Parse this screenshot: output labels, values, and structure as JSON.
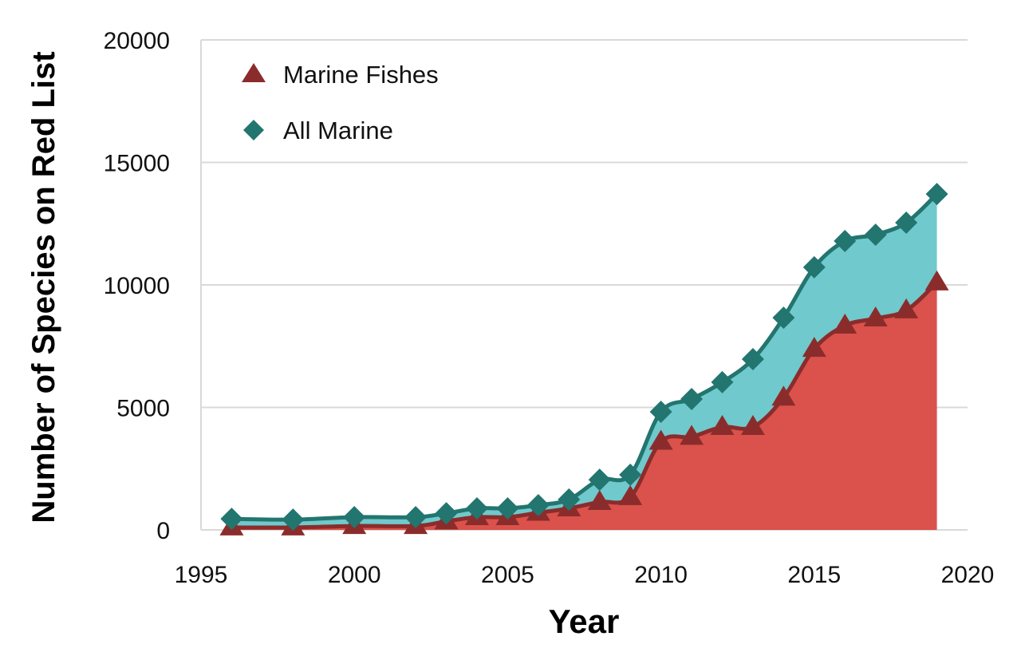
{
  "chart_data": {
    "type": "area",
    "title": "",
    "xlabel": "Year",
    "ylabel": "Number of Species on Red List",
    "xlim": [
      1995,
      2020
    ],
    "ylim": [
      0,
      20000
    ],
    "xticks": [
      1995,
      2000,
      2005,
      2010,
      2015,
      2020
    ],
    "yticks": [
      0,
      5000,
      10000,
      15000,
      20000
    ],
    "grid": "horizontal",
    "legend_placement": "top-left",
    "x": [
      1996,
      1998,
      2000,
      2002,
      2003,
      2004,
      2005,
      2006,
      2007,
      2008,
      2009,
      2010,
      2011,
      2012,
      2013,
      2014,
      2015,
      2016,
      2017,
      2018,
      2019
    ],
    "series": [
      {
        "name": "All Marine",
        "marker": "diamond",
        "line_color": "#23756F",
        "fill_color": "#70C9CC",
        "values": [
          450,
          420,
          520,
          520,
          680,
          880,
          880,
          1010,
          1240,
          2050,
          2250,
          4820,
          5340,
          6030,
          6970,
          8660,
          10720,
          11790,
          12050,
          12540,
          13710
        ]
      },
      {
        "name": "Marine Fishes",
        "marker": "triangle",
        "line_color": "#8B2C2C",
        "fill_color": "#DA524B",
        "values": [
          100,
          100,
          160,
          160,
          350,
          520,
          520,
          700,
          880,
          1140,
          1340,
          3600,
          3800,
          4200,
          4200,
          5400,
          7390,
          8340,
          8630,
          8960,
          10100
        ]
      }
    ]
  }
}
